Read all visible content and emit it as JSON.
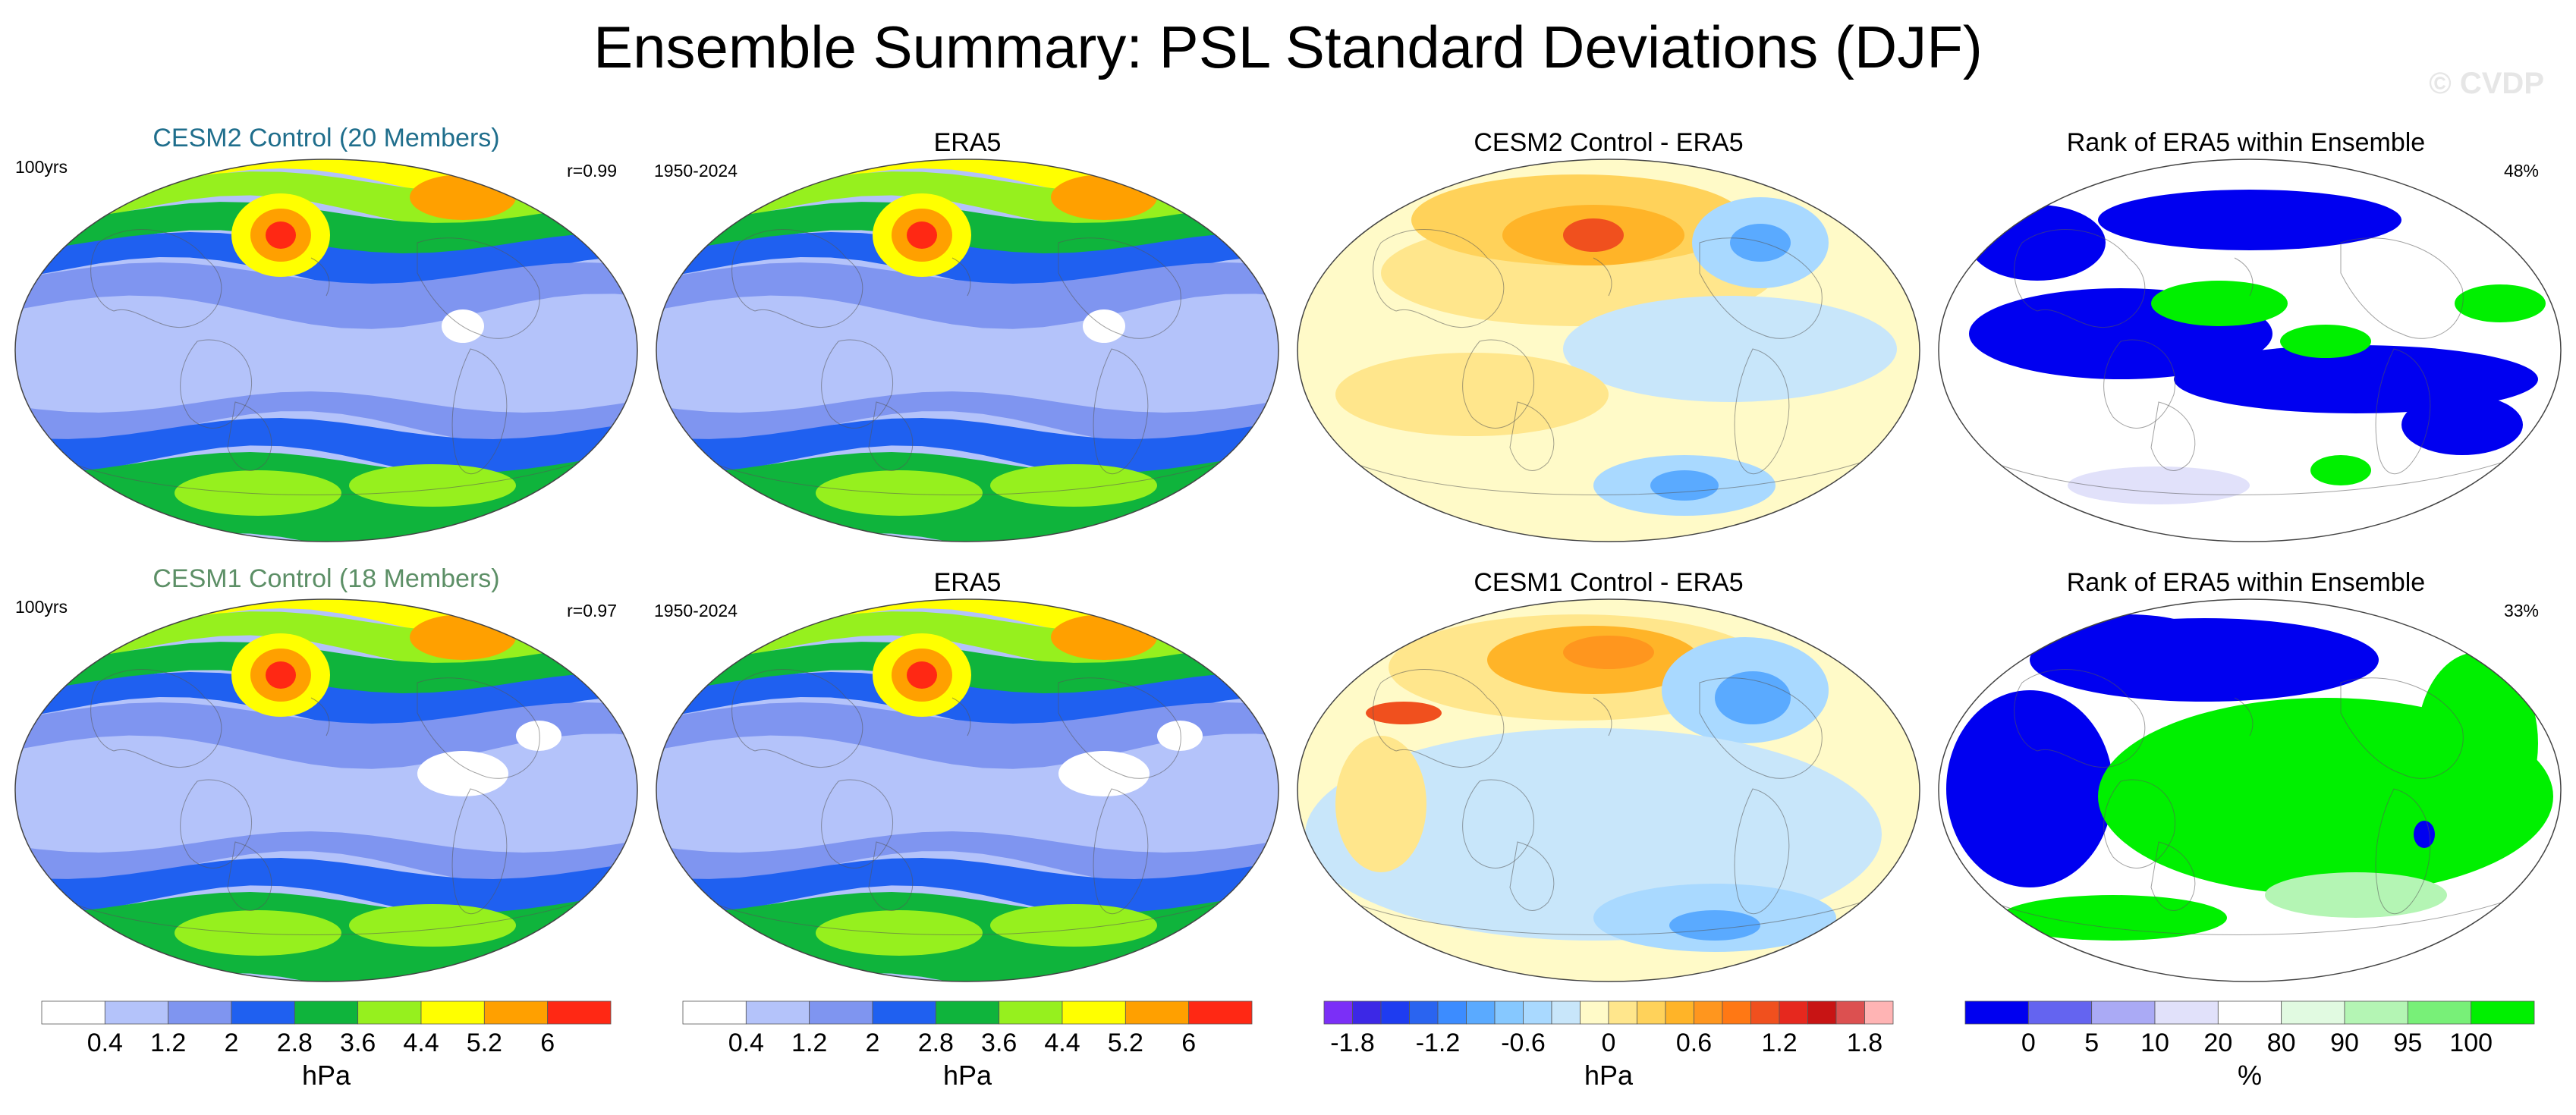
{
  "title": "Ensemble Summary: PSL Standard Deviations (DJF)",
  "watermark": "© CVDP",
  "rows": [
    {
      "panels": [
        {
          "id": "r1p1",
          "title": "CESM2 Control (20 Members)",
          "title_color": "#1f6e8c",
          "left_label": "100yrs",
          "right_label": "r=0.99",
          "kind": "std"
        },
        {
          "id": "r1p2",
          "title": "ERA5",
          "title_color": "#000000",
          "left_label": "1950-2024",
          "right_label": "",
          "kind": "std"
        },
        {
          "id": "r1p3",
          "title": "CESM2 Control - ERA5",
          "title_color": "#000000",
          "left_label": "",
          "right_label": "",
          "kind": "diff"
        },
        {
          "id": "r1p4",
          "title": "Rank of ERA5 within Ensemble",
          "title_color": "#000000",
          "left_label": "",
          "right_label": "48%",
          "kind": "rank"
        }
      ]
    },
    {
      "panels": [
        {
          "id": "r2p1",
          "title": "CESM1 Control (18 Members)",
          "title_color": "#5c8f66",
          "left_label": "100yrs",
          "right_label": "r=0.97",
          "kind": "std"
        },
        {
          "id": "r2p2",
          "title": "ERA5",
          "title_color": "#000000",
          "left_label": "1950-2024",
          "right_label": "",
          "kind": "std"
        },
        {
          "id": "r2p3",
          "title": "CESM1 Control - ERA5",
          "title_color": "#000000",
          "left_label": "",
          "right_label": "",
          "kind": "diff"
        },
        {
          "id": "r2p4",
          "title": "Rank of ERA5 within Ensemble",
          "title_color": "#000000",
          "left_label": "",
          "right_label": "33%",
          "kind": "rank"
        }
      ]
    }
  ],
  "colorbars": [
    {
      "id": "cb1",
      "unit": "hPa",
      "ticks": [
        "0.4",
        "1.2",
        "2",
        "2.8",
        "3.6",
        "4.4",
        "5.2",
        "6"
      ],
      "colors": [
        "#ffffff",
        "#b4c3fa",
        "#7f95f0",
        "#1f60f0",
        "#0fb43c",
        "#96f01e",
        "#ffff00",
        "#ffa000",
        "#ff2814"
      ]
    },
    {
      "id": "cb2",
      "unit": "hPa",
      "ticks": [
        "0.4",
        "1.2",
        "2",
        "2.8",
        "3.6",
        "4.4",
        "5.2",
        "6"
      ],
      "colors": [
        "#ffffff",
        "#b4c3fa",
        "#7f95f0",
        "#1f60f0",
        "#0fb43c",
        "#96f01e",
        "#ffff00",
        "#ffa000",
        "#ff2814"
      ]
    },
    {
      "id": "cb3",
      "unit": "hPa",
      "ticks": [
        "-1.8",
        "-1.2",
        "-0.6",
        "0",
        "0.6",
        "1.2",
        "1.8"
      ],
      "colors": [
        "#7b2ff7",
        "#3c28e6",
        "#1e3cf0",
        "#2a64f0",
        "#3c8cff",
        "#5aaaff",
        "#86c8ff",
        "#a9d9ff",
        "#c8e6fa",
        "#fffac8",
        "#ffe68c",
        "#ffd25a",
        "#ffb428",
        "#ff961e",
        "#ff7814",
        "#f0501e",
        "#e6281e",
        "#c81414",
        "#dc5050",
        "#ffb4b4"
      ]
    },
    {
      "id": "cb4",
      "unit": "%",
      "ticks": [
        "0",
        "5",
        "10",
        "20",
        "80",
        "90",
        "95",
        "100"
      ],
      "colors": [
        "#0000f0",
        "#6464f0",
        "#aaaaf5",
        "#e1e1fa",
        "#ffffff",
        "#e1fae1",
        "#b4f5b4",
        "#78f078",
        "#00f000"
      ]
    }
  ]
}
